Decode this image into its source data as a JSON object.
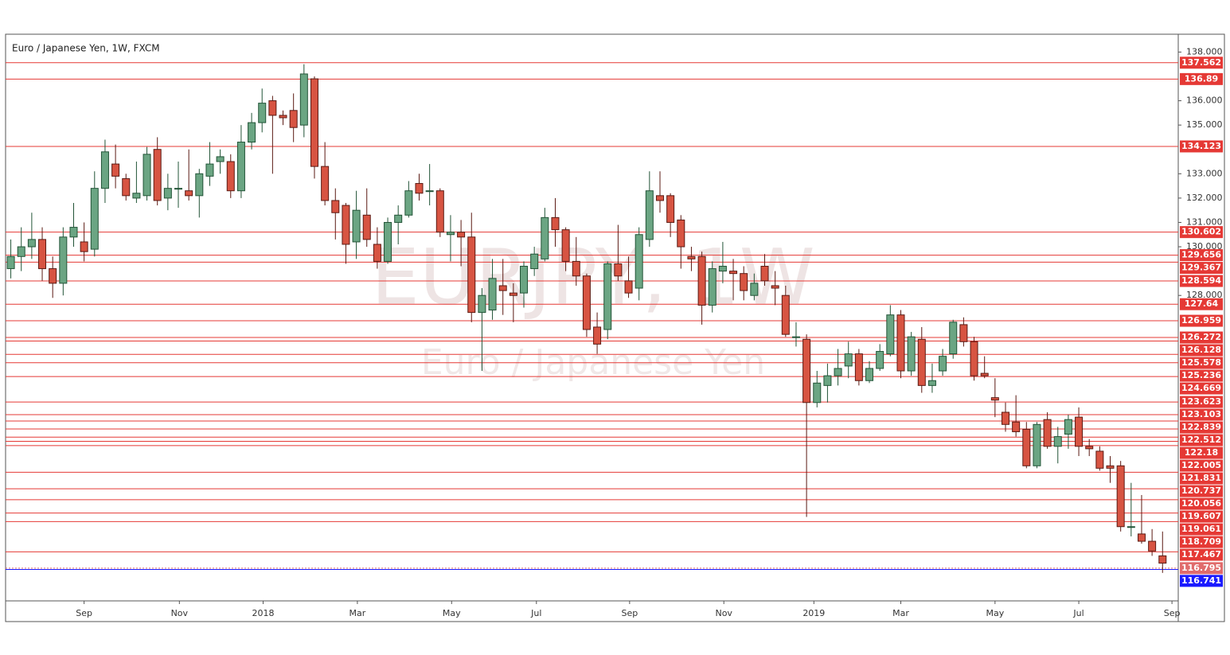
{
  "chart_data": {
    "type": "candlestick",
    "title": "Euro / Japanese Yen, 1W, FXCM",
    "watermark": "EURJPY, 1W",
    "watermark_subtitle": "Euro / Japanese Yen",
    "up_color": "#6ba583",
    "down_color": "#d75442",
    "x": [
      0,
      1,
      2,
      3,
      4,
      5,
      6,
      7,
      8,
      9,
      10,
      11,
      12,
      13,
      14,
      15,
      16,
      17,
      18,
      19,
      20,
      21,
      22,
      23,
      24,
      25,
      26,
      27,
      28,
      29,
      30,
      31,
      32,
      33,
      34,
      35,
      36,
      37,
      38,
      39,
      40,
      41,
      42,
      43,
      44,
      45,
      46,
      47,
      48,
      49,
      50,
      51,
      52,
      53,
      54,
      55,
      56,
      57,
      58,
      59,
      60,
      61,
      62,
      63,
      64,
      65,
      66,
      67,
      68,
      69,
      70,
      71,
      72,
      73,
      74,
      75,
      76,
      77,
      78,
      79,
      80,
      81,
      82,
      83,
      84,
      85,
      86,
      87,
      88,
      89,
      90,
      91,
      92,
      93,
      94,
      95,
      96,
      97,
      98,
      99,
      100,
      101,
      102,
      103,
      104,
      105,
      106,
      107,
      108,
      109,
      110
    ],
    "open": [
      129.1,
      129.6,
      130.0,
      130.3,
      129.1,
      128.5,
      130.4,
      130.2,
      129.9,
      132.4,
      133.4,
      132.8,
      132.0,
      132.1,
      134.0,
      132.0,
      132.4,
      132.3,
      132.1,
      132.9,
      133.5,
      133.5,
      132.3,
      134.3,
      135.1,
      136.0,
      135.4,
      135.6,
      135.0,
      136.9,
      133.3,
      131.9,
      131.7,
      130.2,
      131.3,
      130.1,
      129.4,
      131.0,
      131.3,
      132.6,
      132.3,
      132.3,
      130.5,
      130.6,
      130.4,
      127.3,
      127.4,
      128.4,
      128.1,
      128.1,
      129.1,
      129.5,
      131.2,
      130.7,
      129.4,
      128.8,
      126.7,
      126.6,
      129.3,
      128.6,
      128.3,
      130.3,
      132.1,
      132.1,
      131.1,
      129.6,
      129.6,
      127.6,
      129.0,
      129.0,
      128.9,
      128.0,
      129.2,
      128.4,
      128.0,
      126.3,
      126.2,
      123.6,
      124.3,
      124.7,
      125.1,
      125.6,
      124.5,
      125.0,
      125.6,
      127.2,
      124.9,
      126.2,
      124.3,
      124.9,
      125.6,
      126.8,
      126.1,
      124.8,
      123.8,
      123.2,
      122.8,
      122.5,
      121.0,
      122.9,
      121.8,
      122.3,
      123.0,
      121.8,
      121.6,
      121.0,
      121.0,
      118.5,
      118.2,
      117.9,
      117.3
    ],
    "high": [
      130.3,
      130.8,
      131.4,
      130.8,
      129.6,
      130.8,
      131.8,
      131.0,
      133.1,
      134.4,
      134.2,
      133.0,
      133.5,
      134.1,
      134.5,
      133.0,
      133.5,
      134.0,
      133.2,
      134.3,
      134.0,
      133.8,
      135.0,
      135.5,
      136.5,
      136.2,
      135.6,
      136.3,
      137.5,
      137.0,
      134.3,
      132.4,
      131.8,
      132.3,
      132.4,
      130.8,
      131.2,
      131.7,
      132.7,
      133.0,
      133.4,
      132.4,
      131.3,
      131.1,
      131.4,
      128.3,
      129.5,
      129.5,
      128.5,
      129.4,
      130.0,
      131.6,
      132.0,
      130.8,
      130.4,
      128.9,
      127.3,
      129.4,
      130.9,
      129.6,
      130.8,
      133.1,
      133.1,
      132.2,
      131.3,
      130.0,
      129.8,
      129.4,
      130.2,
      129.5,
      129.2,
      128.9,
      129.7,
      129.0,
      128.4,
      126.9,
      126.4,
      124.9,
      125.2,
      125.8,
      126.1,
      125.8,
      125.3,
      126.0,
      127.6,
      127.4,
      126.5,
      126.7,
      125.2,
      125.8,
      127.0,
      127.1,
      126.3,
      125.5,
      124.6,
      123.6,
      123.9,
      122.8,
      122.8,
      123.2,
      122.6,
      123.1,
      123.4,
      122.1,
      121.8,
      121.4,
      121.2,
      120.3,
      119.8,
      118.4,
      118.3
    ],
    "low": [
      128.7,
      129.0,
      129.5,
      128.6,
      127.9,
      128.0,
      130.0,
      129.4,
      129.6,
      131.8,
      132.4,
      131.9,
      131.8,
      131.9,
      131.7,
      131.5,
      131.6,
      131.9,
      131.2,
      132.5,
      133.0,
      132.0,
      132.0,
      134.0,
      134.7,
      133.0,
      135.0,
      134.3,
      134.5,
      132.8,
      131.7,
      130.3,
      129.3,
      129.5,
      130.0,
      129.1,
      129.3,
      130.1,
      131.2,
      131.9,
      131.7,
      130.4,
      129.4,
      129.2,
      126.9,
      124.9,
      127.0,
      127.2,
      126.9,
      127.5,
      128.8,
      129.4,
      130.0,
      129.0,
      128.4,
      126.3,
      125.6,
      126.2,
      128.6,
      127.9,
      127.8,
      130.0,
      131.4,
      130.4,
      129.1,
      129.0,
      126.8,
      127.3,
      128.5,
      127.8,
      127.8,
      127.8,
      128.4,
      127.6,
      126.3,
      125.9,
      118.9,
      123.4,
      123.6,
      124.3,
      124.6,
      124.3,
      124.4,
      124.9,
      125.5,
      124.6,
      124.7,
      124.0,
      124.0,
      124.7,
      125.4,
      125.9,
      124.5,
      124.6,
      123.0,
      122.4,
      122.2,
      120.9,
      120.9,
      121.7,
      121.1,
      121.7,
      121.4,
      121.4,
      120.8,
      120.3,
      118.3,
      118.1,
      117.8,
      117.3,
      116.6
    ],
    "close": [
      129.6,
      130.0,
      130.3,
      129.1,
      128.5,
      130.4,
      130.8,
      129.8,
      132.4,
      133.9,
      132.9,
      132.1,
      132.2,
      133.8,
      131.9,
      132.4,
      132.4,
      132.1,
      133.0,
      133.4,
      133.7,
      132.3,
      134.3,
      135.1,
      135.9,
      135.4,
      135.3,
      134.9,
      137.1,
      133.3,
      131.9,
      131.4,
      130.1,
      131.5,
      130.3,
      129.4,
      131.0,
      131.3,
      132.3,
      132.2,
      132.3,
      130.6,
      130.6,
      130.4,
      127.3,
      128.0,
      128.7,
      128.2,
      128.0,
      129.2,
      129.7,
      131.2,
      130.7,
      129.4,
      128.8,
      126.6,
      126.0,
      129.3,
      128.8,
      128.1,
      130.5,
      132.3,
      131.9,
      131.0,
      130.0,
      129.5,
      127.6,
      129.1,
      129.2,
      128.9,
      128.2,
      128.5,
      128.6,
      128.3,
      126.4,
      126.3,
      123.6,
      124.4,
      124.7,
      125.0,
      125.6,
      124.5,
      125.0,
      125.7,
      127.2,
      124.9,
      126.3,
      124.3,
      124.5,
      125.5,
      126.9,
      126.1,
      124.7,
      124.7,
      123.7,
      122.7,
      122.4,
      121.0,
      122.7,
      121.8,
      122.2,
      122.9,
      121.8,
      121.7,
      120.9,
      120.9,
      118.5,
      118.5,
      117.9,
      117.5,
      117.0
    ],
    "xlim": [
      -0.5,
      111.5
    ],
    "xticks": [
      {
        "value": 7,
        "label": "Sep"
      },
      {
        "value": 16.1,
        "label": "Nov"
      },
      {
        "value": 24.1,
        "label": "2018"
      },
      {
        "value": 33.1,
        "label": "Mar"
      },
      {
        "value": 42.1,
        "label": "May"
      },
      {
        "value": 50.2,
        "label": "Jul"
      },
      {
        "value": 59.1,
        "label": "Sep"
      },
      {
        "value": 68.1,
        "label": "Nov"
      },
      {
        "value": 76.7,
        "label": "2019"
      },
      {
        "value": 85,
        "label": "Mar"
      },
      {
        "value": 94,
        "label": "May"
      },
      {
        "value": 102,
        "label": "Jul"
      },
      {
        "value": 110.9,
        "label": "Sep"
      }
    ],
    "ylim": [
      115.45,
      138.7
    ],
    "yticks": [
      {
        "value": 138,
        "label": "138.000"
      },
      {
        "value": 136,
        "label": "136.000"
      },
      {
        "value": 135,
        "label": "135.000"
      },
      {
        "value": 133,
        "label": "133.000"
      },
      {
        "value": 132,
        "label": "132.000"
      },
      {
        "value": 131,
        "label": "131.000"
      },
      {
        "value": 130,
        "label": "130.000"
      },
      {
        "value": 128,
        "label": "128.000"
      }
    ],
    "level_color": "#e53935",
    "levels": [
      137.562,
      136.89,
      134.123,
      130.602,
      129.656,
      129.367,
      128.594,
      127.64,
      126.959,
      126.272,
      126.128,
      125.578,
      125.236,
      124.669,
      123.623,
      123.103,
      122.839,
      122.512,
      122.18,
      122.005,
      121.831,
      120.737,
      120.056,
      119.607,
      119.061,
      118.709,
      117.467
    ],
    "price_lines": [
      {
        "value": 116.795,
        "color": "#e06c6c"
      },
      {
        "value": 116.741,
        "color": "#1a1aff"
      }
    ]
  }
}
